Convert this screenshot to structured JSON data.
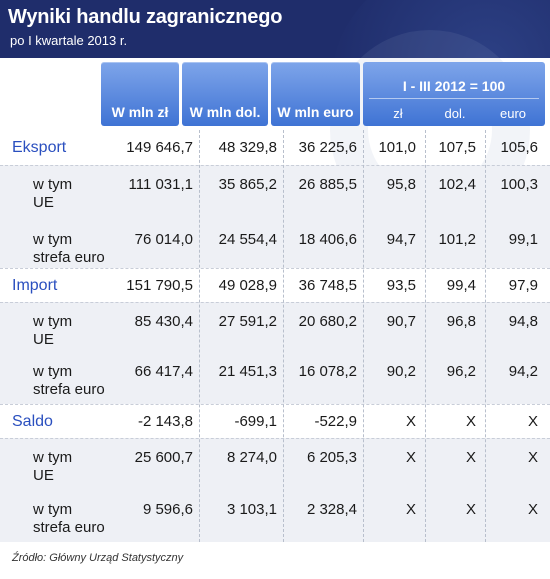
{
  "header": {
    "title": "Wyniki handlu zagranicznego",
    "subtitle": "po I kwartale 2013 r."
  },
  "columns": {
    "c1": "W mln zł",
    "c2": "W mln dol.",
    "c3": "W mln euro",
    "group_label": "I - III 2012 = 100",
    "g1": "zł",
    "g2": "dol.",
    "g3": "euro"
  },
  "rows": [
    {
      "label": "Eksport",
      "sub": false,
      "values": [
        "149 646,7",
        "48 329,8",
        "36 225,6",
        "101,0",
        "107,5",
        "105,6"
      ]
    },
    {
      "label_l1": "w tym",
      "label_l2": "UE",
      "sub": true,
      "values": [
        "111 031,1",
        "35 865,2",
        "26 885,5",
        "95,8",
        "102,4",
        "100,3"
      ]
    },
    {
      "label_l1": "w tym",
      "label_l2": "strefa euro",
      "sub": true,
      "values": [
        "76 014,0",
        "24 554,4",
        "18 406,6",
        "94,7",
        "101,2",
        "99,1"
      ]
    },
    {
      "label": "Import",
      "sub": false,
      "values": [
        "151 790,5",
        "49 028,9",
        "36 748,5",
        "93,5",
        "99,4",
        "97,9"
      ]
    },
    {
      "label_l1": "w tym",
      "label_l2": "UE",
      "sub": true,
      "values": [
        "85 430,4",
        "27 591,2",
        "20 680,2",
        "90,7",
        "96,8",
        "94,8"
      ]
    },
    {
      "label_l1": "w tym",
      "label_l2": "strefa euro",
      "sub": true,
      "values": [
        "66 417,4",
        "21 451,3",
        "16 078,2",
        "90,2",
        "96,2",
        "94,2"
      ]
    },
    {
      "label": "Saldo",
      "sub": false,
      "values": [
        "-2 143,8",
        "-699,1",
        "-522,9",
        "X",
        "X",
        "X"
      ]
    },
    {
      "label_l1": "w tym",
      "label_l2": "UE",
      "sub": true,
      "values": [
        "25 600,7",
        "8 274,0",
        "6 205,3",
        "X",
        "X",
        "X"
      ]
    },
    {
      "label_l1": "w tym",
      "label_l2": "strefa euro",
      "sub": true,
      "values": [
        "9 596,6",
        "3 103,1",
        "2 328,4",
        "X",
        "X",
        "X"
      ]
    }
  ],
  "source": "Źródło: Główny Urząd Statystyczny",
  "colors": {
    "header_bg": "#1f2d6b",
    "header_cell": "#4a7fdc",
    "label_blue": "#2a4fbf",
    "shade": "#eef0f5"
  }
}
